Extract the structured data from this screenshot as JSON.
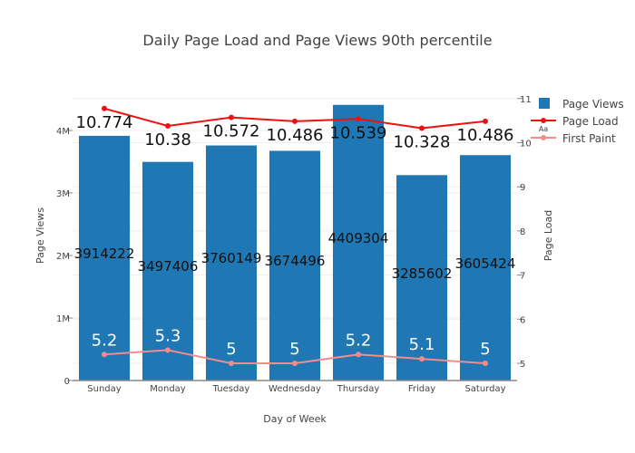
{
  "chart_data": {
    "type": "bar",
    "title": "Daily Page Load and Page Views 90th percentile",
    "xlabel": "Day of Week",
    "ylabel": "Page Views",
    "y2label": "Page Load",
    "categories": [
      "Sunday",
      "Monday",
      "Tuesday",
      "Wednesday",
      "Thursday",
      "Friday",
      "Saturday"
    ],
    "ylim": [
      0,
      4400000
    ],
    "y2lim": [
      4.6,
      11.1
    ],
    "y_ticks": [
      {
        "v": 0,
        "label": "0"
      },
      {
        "v": 1000000,
        "label": "1M"
      },
      {
        "v": 2000000,
        "label": "2M"
      },
      {
        "v": 3000000,
        "label": "3M"
      },
      {
        "v": 4000000,
        "label": "4M"
      }
    ],
    "y2_ticks": [
      {
        "v": 5,
        "label": "5"
      },
      {
        "v": 6,
        "label": "6"
      },
      {
        "v": 7,
        "label": "7"
      },
      {
        "v": 8,
        "label": "8"
      },
      {
        "v": 9,
        "label": "9"
      },
      {
        "v": 10,
        "label": "10"
      },
      {
        "v": 11,
        "label": "11"
      }
    ],
    "grid": true,
    "legend_position": "top-right",
    "series": [
      {
        "name": "Page Views",
        "type": "bar",
        "axis": "y",
        "color": "#1f77b4",
        "values": [
          3914222,
          3497406,
          3760149,
          3674496,
          4409304,
          3285602,
          3605424
        ],
        "labels": [
          "3914222",
          "3497406",
          "3760149",
          "3674496",
          "4409304",
          "3285602",
          "3605424"
        ]
      },
      {
        "name": "Page Load",
        "type": "line",
        "axis": "y2",
        "color": "#ee1111",
        "values": [
          10.774,
          10.38,
          10.572,
          10.486,
          10.539,
          10.328,
          10.486
        ],
        "labels": [
          "10.774",
          "10.38",
          "10.572",
          "10.486",
          "10.539",
          "10.328",
          "10.486"
        ]
      },
      {
        "name": "First Paint",
        "type": "line",
        "axis": "y2",
        "color": "#f58c8c",
        "values": [
          5.2,
          5.3,
          5,
          5,
          5.2,
          5.1,
          5
        ],
        "labels": [
          "5.2",
          "5.3",
          "5",
          "5",
          "5.2",
          "5.1",
          "5"
        ]
      }
    ],
    "legend_hint": "Aa"
  }
}
